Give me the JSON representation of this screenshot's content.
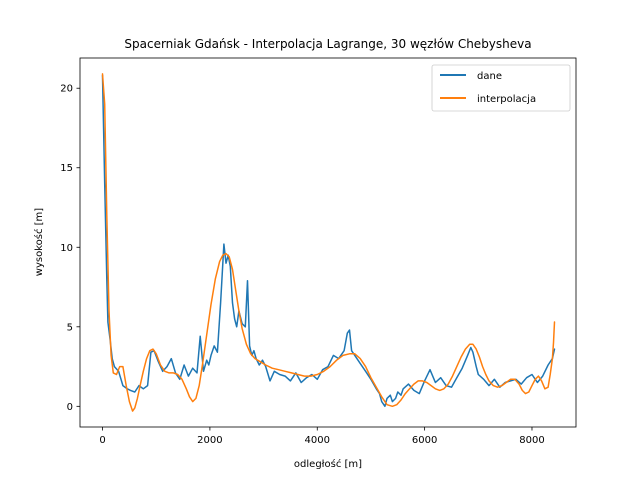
{
  "chart_data": {
    "type": "line",
    "title": "Spacerniak Gdańsk - Interpolacja Lagrange, 30 węzłów Chebysheva",
    "xlabel": "odległość [m]",
    "ylabel": "wysokość [m]",
    "xlim": [
      -420,
      8820
    ],
    "ylim": [
      -1.3,
      21.9
    ],
    "xticks": [
      0,
      2000,
      4000,
      6000,
      8000
    ],
    "yticks": [
      0,
      5,
      10,
      15,
      20
    ],
    "legend_position": "top-right",
    "colors": {
      "dane": "#1f77b4",
      "interpolacja": "#ff7f0e"
    },
    "series": [
      {
        "name": "dane",
        "x": [
          0,
          40,
          80,
          100,
          140,
          180,
          220,
          300,
          380,
          460,
          520,
          600,
          680,
          760,
          840,
          900,
          960,
          1040,
          1120,
          1200,
          1280,
          1360,
          1440,
          1520,
          1600,
          1680,
          1760,
          1820,
          1880,
          1940,
          1980,
          2020,
          2080,
          2140,
          2200,
          2260,
          2300,
          2340,
          2380,
          2420,
          2460,
          2500,
          2540,
          2600,
          2660,
          2700,
          2740,
          2780,
          2820,
          2860,
          2920,
          2980,
          3040,
          3120,
          3200,
          3300,
          3400,
          3500,
          3600,
          3700,
          3800,
          3900,
          4000,
          4100,
          4200,
          4300,
          4400,
          4500,
          4560,
          4600,
          4640,
          4700,
          4800,
          4900,
          5000,
          5100,
          5160,
          5200,
          5260,
          5300,
          5360,
          5400,
          5460,
          5500,
          5560,
          5600,
          5700,
          5800,
          5900,
          6000,
          6100,
          6200,
          6300,
          6400,
          6500,
          6600,
          6700,
          6800,
          6860,
          6900,
          6960,
          7000,
          7100,
          7200,
          7300,
          7400,
          7500,
          7600,
          7700,
          7800,
          7900,
          8000,
          8100,
          8200,
          8300,
          8380,
          8420
        ],
        "y": [
          20.8,
          14.0,
          8.0,
          5.3,
          4.2,
          3.0,
          2.5,
          2.2,
          1.3,
          1.1,
          1.0,
          0.9,
          1.3,
          1.1,
          1.3,
          3.4,
          3.5,
          2.8,
          2.2,
          2.5,
          3.0,
          2.1,
          1.7,
          2.6,
          1.9,
          2.4,
          2.1,
          4.4,
          2.2,
          2.9,
          2.6,
          3.2,
          3.8,
          3.4,
          6.5,
          10.2,
          9.0,
          9.5,
          8.8,
          6.5,
          5.5,
          5.0,
          6.0,
          5.2,
          5.0,
          7.9,
          3.8,
          3.2,
          3.5,
          3.0,
          2.6,
          2.9,
          2.5,
          1.6,
          2.2,
          2.0,
          1.9,
          1.6,
          2.1,
          1.5,
          1.8,
          2.0,
          1.7,
          2.3,
          2.5,
          3.2,
          3.0,
          3.5,
          4.6,
          4.8,
          3.5,
          3.2,
          2.7,
          2.2,
          1.7,
          1.1,
          0.8,
          0.3,
          0.0,
          0.5,
          0.7,
          0.3,
          0.5,
          0.9,
          0.7,
          1.1,
          1.4,
          1.0,
          0.8,
          1.6,
          2.3,
          1.5,
          1.8,
          1.3,
          1.2,
          1.8,
          2.4,
          3.2,
          3.7,
          3.4,
          2.5,
          2.0,
          1.7,
          1.3,
          1.7,
          1.2,
          1.5,
          1.6,
          1.7,
          1.4,
          1.8,
          2.0,
          1.5,
          1.9,
          2.6,
          3.0,
          3.6
        ]
      },
      {
        "name": "interpolacja",
        "x": [
          0,
          40,
          80,
          120,
          160,
          200,
          260,
          320,
          380,
          440,
          500,
          560,
          600,
          650,
          700,
          760,
          820,
          880,
          940,
          1000,
          1080,
          1160,
          1240,
          1320,
          1400,
          1480,
          1560,
          1620,
          1680,
          1740,
          1800,
          1860,
          1940,
          2020,
          2100,
          2180,
          2240,
          2300,
          2360,
          2420,
          2480,
          2540,
          2600,
          2680,
          2760,
          2840,
          2940,
          3040,
          3160,
          3280,
          3400,
          3520,
          3640,
          3760,
          3880,
          4000,
          4120,
          4240,
          4360,
          4480,
          4600,
          4700,
          4800,
          4900,
          5000,
          5100,
          5200,
          5300,
          5400,
          5480,
          5560,
          5640,
          5720,
          5800,
          5880,
          5960,
          6040,
          6120,
          6200,
          6280,
          6360,
          6440,
          6520,
          6600,
          6680,
          6760,
          6840,
          6900,
          6960,
          7020,
          7080,
          7140,
          7200,
          7280,
          7360,
          7440,
          7520,
          7600,
          7680,
          7760,
          7820,
          7880,
          7940,
          8000,
          8060,
          8120,
          8180,
          8240,
          8300,
          8340,
          8380,
          8400,
          8420
        ],
        "y": [
          20.9,
          19.0,
          12.0,
          6.0,
          3.2,
          2.1,
          2.0,
          2.5,
          2.5,
          1.3,
          0.3,
          -0.3,
          -0.1,
          0.5,
          1.3,
          2.2,
          3.0,
          3.5,
          3.6,
          3.3,
          2.6,
          2.2,
          2.1,
          2.1,
          2.0,
          1.7,
          1.1,
          0.6,
          0.3,
          0.5,
          1.3,
          2.6,
          4.5,
          6.4,
          8.0,
          9.1,
          9.5,
          9.6,
          9.4,
          8.6,
          7.3,
          6.0,
          4.9,
          3.9,
          3.3,
          3.0,
          2.8,
          2.6,
          2.4,
          2.3,
          2.2,
          2.1,
          2.0,
          1.9,
          1.9,
          2.0,
          2.2,
          2.5,
          2.9,
          3.2,
          3.3,
          3.3,
          3.0,
          2.5,
          1.8,
          1.2,
          0.6,
          0.1,
          0.0,
          0.1,
          0.4,
          0.8,
          1.1,
          1.4,
          1.6,
          1.6,
          1.5,
          1.3,
          1.1,
          1.0,
          1.1,
          1.4,
          1.9,
          2.5,
          3.1,
          3.6,
          3.9,
          3.9,
          3.6,
          3.1,
          2.5,
          2.0,
          1.6,
          1.3,
          1.2,
          1.3,
          1.5,
          1.7,
          1.7,
          1.4,
          1.0,
          0.8,
          0.9,
          1.3,
          1.7,
          1.9,
          1.6,
          1.1,
          1.2,
          2.0,
          3.0,
          4.0,
          5.3
        ]
      }
    ]
  }
}
